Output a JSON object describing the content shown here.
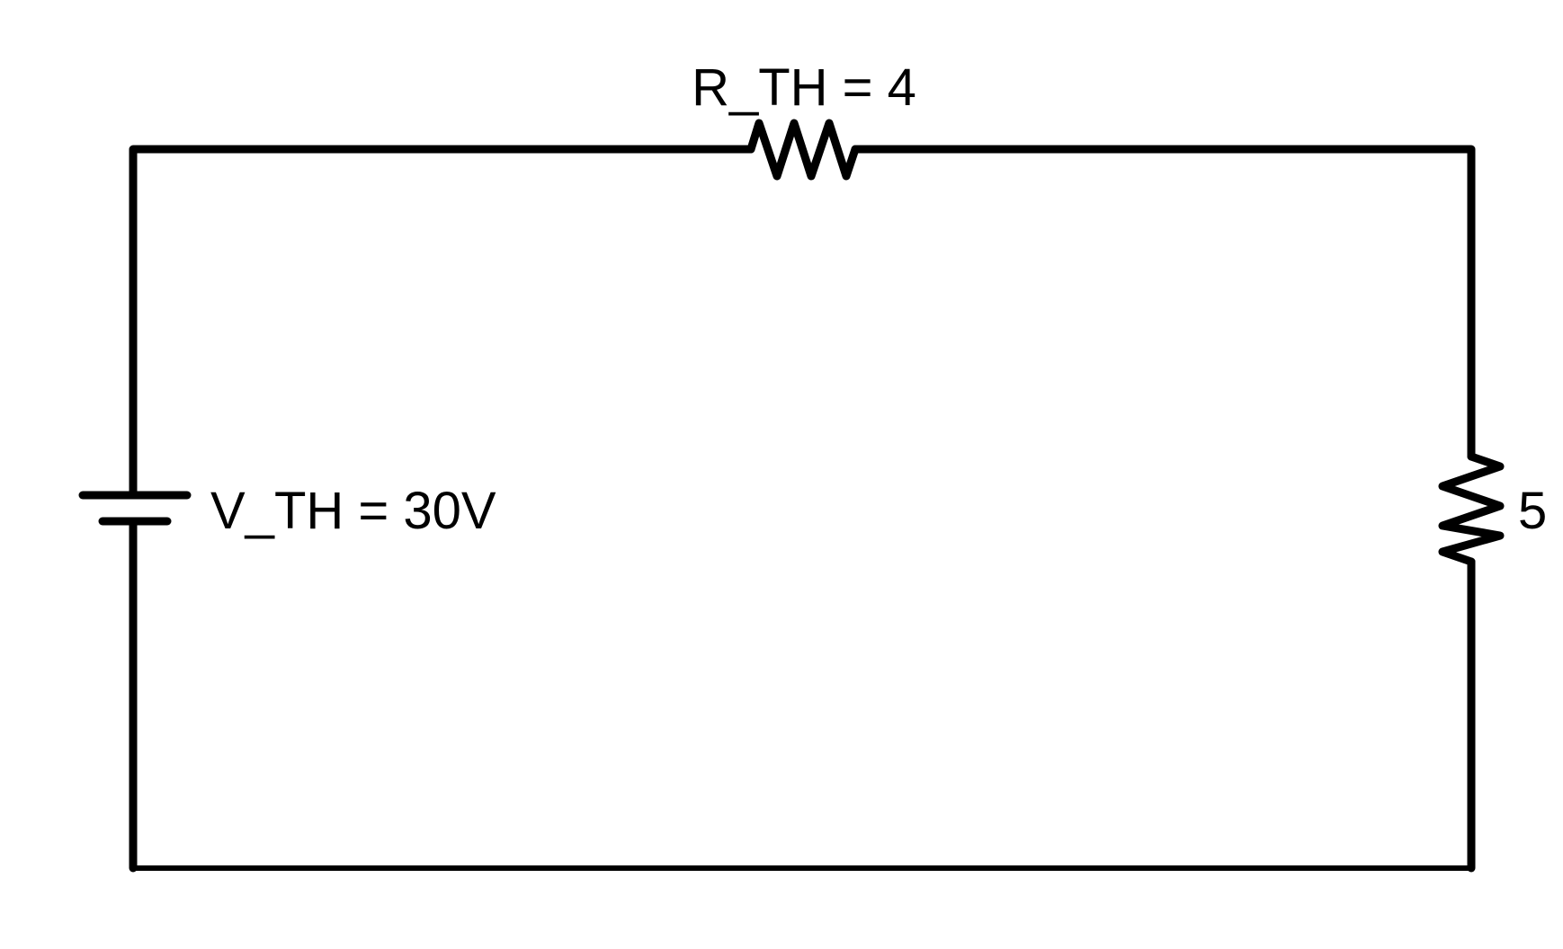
{
  "colors": {
    "background": "#ffffff",
    "stroke": "#000000"
  },
  "components": {
    "source": {
      "label": "V_TH = 30V"
    },
    "series_resistor": {
      "label": "R_TH = 4"
    },
    "load_resistor": {
      "label": "5"
    }
  }
}
